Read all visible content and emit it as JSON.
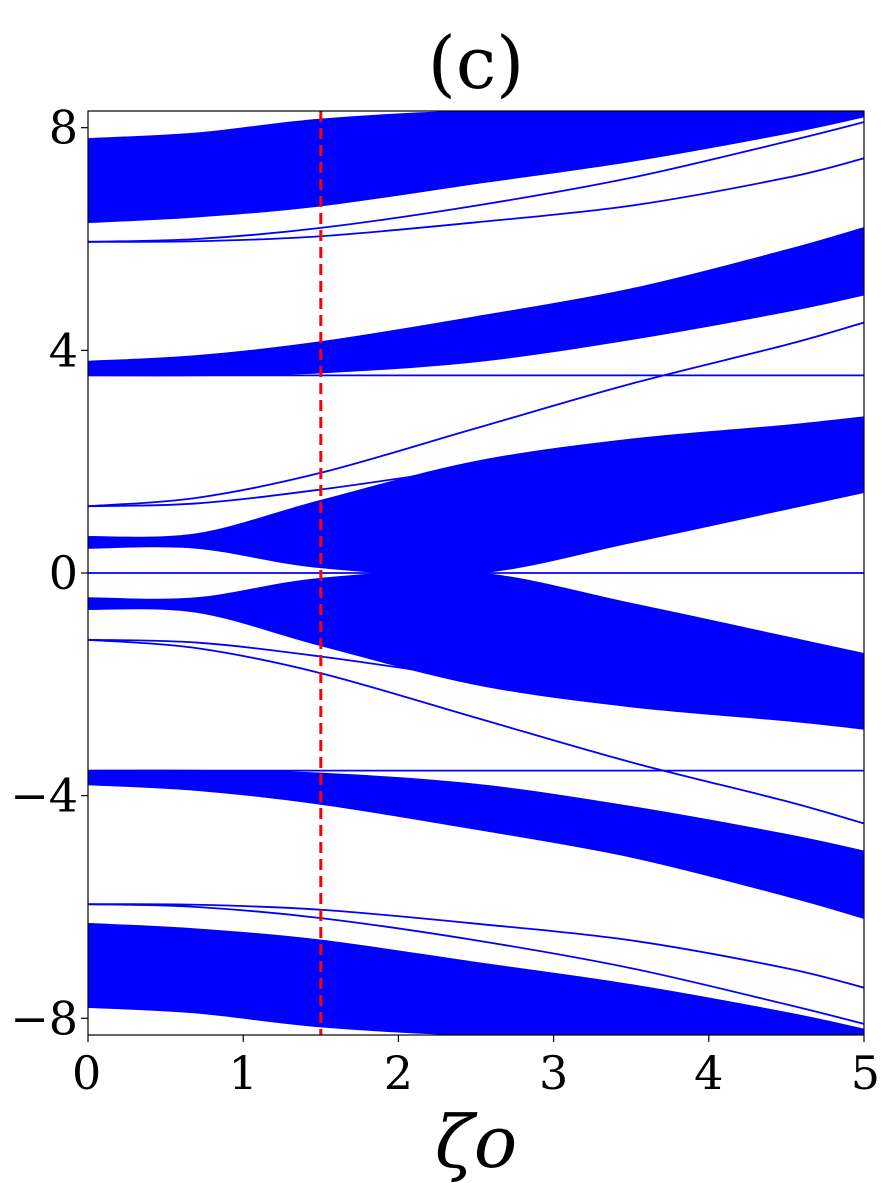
{
  "chart_data": {
    "type": "line",
    "title": "(c)",
    "xlabel": "ζo",
    "ylabel": "",
    "xlim": [
      0,
      5
    ],
    "ylim": [
      -8.3,
      8.3
    ],
    "xticks": [
      0,
      1,
      2,
      3,
      4,
      5
    ],
    "xtick_labels": [
      "0",
      "1",
      "2",
      "3",
      "4",
      "5"
    ],
    "yticks": [
      -8,
      -4,
      0,
      4,
      8
    ],
    "ytick_labels": [
      "−8",
      "−4",
      "0",
      "4",
      "8"
    ],
    "grid": false,
    "colors": {
      "bands": "#0000ff",
      "marker": "#ff0000"
    },
    "marker_line": {
      "x": 1.5,
      "style": "dashed"
    },
    "x": [
      0,
      0.7,
      1.5,
      2.5,
      3.5,
      4.5,
      5.0
    ],
    "bands": [
      {
        "name": "band_top",
        "lower": [
          6.3,
          6.4,
          6.6,
          7.0,
          7.4,
          7.9,
          8.2
        ],
        "upper": [
          7.8,
          7.9,
          8.15,
          8.3,
          8.3,
          8.3,
          8.3
        ]
      },
      {
        "name": "band_upper_mid",
        "lower": [
          3.55,
          3.55,
          3.6,
          3.8,
          4.2,
          4.7,
          5.0
        ],
        "upper": [
          3.8,
          3.9,
          4.15,
          4.6,
          5.1,
          5.8,
          6.2
        ]
      },
      {
        "name": "band_upper_inner",
        "lower": [
          0.45,
          0.45,
          0.1,
          0.0,
          0.55,
          1.15,
          1.45
        ],
        "upper": [
          0.65,
          0.7,
          1.3,
          2.0,
          2.4,
          2.65,
          2.8
        ]
      },
      {
        "name": "band_lower_inner",
        "lower": [
          -0.65,
          -0.7,
          -1.3,
          -2.0,
          -2.4,
          -2.65,
          -2.8
        ],
        "upper": [
          -0.45,
          -0.45,
          -0.1,
          0.0,
          -0.55,
          -1.15,
          -1.45
        ]
      },
      {
        "name": "band_lower_mid",
        "lower": [
          -3.8,
          -3.9,
          -4.15,
          -4.6,
          -5.1,
          -5.8,
          -6.2
        ],
        "upper": [
          -3.55,
          -3.55,
          -3.6,
          -3.8,
          -4.2,
          -4.7,
          -5.0
        ]
      },
      {
        "name": "band_bottom",
        "lower": [
          -7.8,
          -7.9,
          -8.15,
          -8.3,
          -8.3,
          -8.3,
          -8.3
        ],
        "upper": [
          -6.3,
          -6.4,
          -6.6,
          -7.0,
          -7.4,
          -7.9,
          -8.2
        ]
      }
    ],
    "lines": [
      {
        "name": "gap_top_a",
        "y": [
          5.95,
          5.96,
          6.05,
          6.3,
          6.6,
          7.1,
          7.45
        ]
      },
      {
        "name": "gap_top_b",
        "y": [
          5.95,
          6.0,
          6.2,
          6.6,
          7.1,
          7.75,
          8.1
        ]
      },
      {
        "name": "flat_upper",
        "y": [
          3.55,
          3.55,
          3.55,
          3.55,
          3.55,
          3.55,
          3.55
        ]
      },
      {
        "name": "gap_upper_a",
        "y": [
          1.2,
          1.25,
          1.5,
          1.9,
          2.3,
          2.6,
          2.7
        ]
      },
      {
        "name": "gap_upper_b",
        "y": [
          1.2,
          1.35,
          1.8,
          2.6,
          3.4,
          4.1,
          4.5
        ]
      },
      {
        "name": "zero_mode",
        "y": [
          0.0,
          0.0,
          0.0,
          0.0,
          0.0,
          0.0,
          0.0
        ]
      },
      {
        "name": "gap_lower_a",
        "y": [
          -1.2,
          -1.25,
          -1.5,
          -1.9,
          -2.3,
          -2.6,
          -2.7
        ]
      },
      {
        "name": "gap_lower_b",
        "y": [
          -1.2,
          -1.35,
          -1.8,
          -2.6,
          -3.4,
          -4.1,
          -4.5
        ]
      },
      {
        "name": "flat_lower",
        "y": [
          -3.55,
          -3.55,
          -3.55,
          -3.55,
          -3.55,
          -3.55,
          -3.55
        ]
      },
      {
        "name": "gap_bottom_a",
        "y": [
          -5.95,
          -5.96,
          -6.05,
          -6.3,
          -6.6,
          -7.1,
          -7.45
        ]
      },
      {
        "name": "gap_bottom_b",
        "y": [
          -5.95,
          -6.0,
          -6.2,
          -6.6,
          -7.1,
          -7.75,
          -8.1
        ]
      }
    ]
  }
}
